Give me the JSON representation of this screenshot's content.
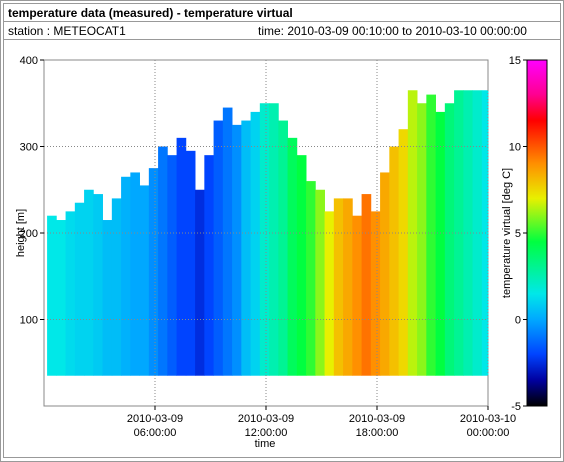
{
  "header": {
    "title": "temperature data (measured) - temperature virtual",
    "station": "station : METEOCAT1",
    "time": "time: 2010-03-09 00:10:00 to 2010-03-10 00:00:00"
  },
  "chart_data": {
    "type": "heatmap",
    "x_label": "time",
    "y_label": "height [m]",
    "colorbar_label": "temperature virtual [deg C]",
    "xlim": [
      "2010-03-09 00:00:00",
      "2010-03-10 00:00:00"
    ],
    "xticks": [
      {
        "value": "2010-03-09 06:00:00",
        "label": [
          "2010-03-09",
          "06:00:00"
        ]
      },
      {
        "value": "2010-03-09 12:00:00",
        "label": [
          "2010-03-09",
          "12:00:00"
        ]
      },
      {
        "value": "2010-03-09 18:00:00",
        "label": [
          "2010-03-09",
          "18:00:00"
        ]
      },
      {
        "value": "2010-03-10 00:00:00",
        "label": [
          "2010-03-10",
          "00:00:00"
        ]
      }
    ],
    "ylim": [
      0,
      400
    ],
    "yticks": [
      100,
      200,
      300,
      400
    ],
    "grid": true,
    "zlim": [
      -5,
      15
    ],
    "zticks": [
      -5,
      0,
      5,
      10,
      15
    ],
    "colormap": [
      {
        "value": -5,
        "color": "#000000"
      },
      {
        "value": -3.5,
        "color": "#0000a0"
      },
      {
        "value": -2,
        "color": "#0044ff"
      },
      {
        "value": 0,
        "color": "#00a8ff"
      },
      {
        "value": 1.5,
        "color": "#00e8e8"
      },
      {
        "value": 4.5,
        "color": "#00ff40"
      },
      {
        "value": 7,
        "color": "#e8f000"
      },
      {
        "value": 9,
        "color": "#ff9000"
      },
      {
        "value": 11.5,
        "color": "#ff0000"
      },
      {
        "value": 13,
        "color": "#ff0090"
      },
      {
        "value": 15,
        "color": "#ff00ff"
      }
    ],
    "base": 35,
    "x": [
      "2010-03-09 00:10:00",
      "2010-03-09 00:40:00",
      "2010-03-09 01:10:00",
      "2010-03-09 01:40:00",
      "2010-03-09 02:10:00",
      "2010-03-09 02:40:00",
      "2010-03-09 03:10:00",
      "2010-03-09 03:40:00",
      "2010-03-09 04:10:00",
      "2010-03-09 04:40:00",
      "2010-03-09 05:10:00",
      "2010-03-09 05:40:00",
      "2010-03-09 06:10:00",
      "2010-03-09 06:40:00",
      "2010-03-09 07:10:00",
      "2010-03-09 07:40:00",
      "2010-03-09 08:10:00",
      "2010-03-09 08:40:00",
      "2010-03-09 09:10:00",
      "2010-03-09 09:40:00",
      "2010-03-09 10:10:00",
      "2010-03-09 10:40:00",
      "2010-03-09 11:10:00",
      "2010-03-09 11:40:00",
      "2010-03-09 12:10:00",
      "2010-03-09 12:40:00",
      "2010-03-09 13:10:00",
      "2010-03-09 13:40:00",
      "2010-03-09 14:10:00",
      "2010-03-09 14:40:00",
      "2010-03-09 15:10:00",
      "2010-03-09 15:40:00",
      "2010-03-09 16:10:00",
      "2010-03-09 16:40:00",
      "2010-03-09 17:10:00",
      "2010-03-09 17:40:00",
      "2010-03-09 18:10:00",
      "2010-03-09 18:40:00",
      "2010-03-09 19:10:00",
      "2010-03-09 19:40:00",
      "2010-03-09 20:10:00",
      "2010-03-09 20:40:00",
      "2010-03-09 21:10:00",
      "2010-03-09 21:40:00",
      "2010-03-09 22:10:00",
      "2010-03-09 22:40:00",
      "2010-03-09 23:10:00",
      "2010-03-09 23:40:00"
    ],
    "tops": [
      220,
      215,
      225,
      235,
      250,
      245,
      215,
      240,
      265,
      270,
      255,
      275,
      300,
      290,
      310,
      295,
      250,
      290,
      330,
      345,
      325,
      330,
      340,
      350,
      350,
      330,
      310,
      290,
      260,
      250,
      225,
      240,
      240,
      220,
      245,
      225,
      270,
      300,
      320,
      365,
      350,
      360,
      340,
      350,
      365,
      365,
      365,
      365
    ],
    "values": [
      1.5,
      1.5,
      1.2,
      1.0,
      1.0,
      0.8,
      0.5,
      0.5,
      0.2,
      0,
      0,
      -0.5,
      -1,
      -1.5,
      -2,
      -2,
      -2.5,
      -2,
      -1.5,
      -1,
      -0.5,
      0.5,
      1,
      2,
      2.5,
      3,
      4,
      4.5,
      5,
      6,
      7,
      8,
      8.5,
      9,
      9.5,
      9,
      8.5,
      8,
      7.5,
      6.5,
      6,
      5,
      4.5,
      3.5,
      3,
      2.5,
      2,
      1.5
    ]
  }
}
